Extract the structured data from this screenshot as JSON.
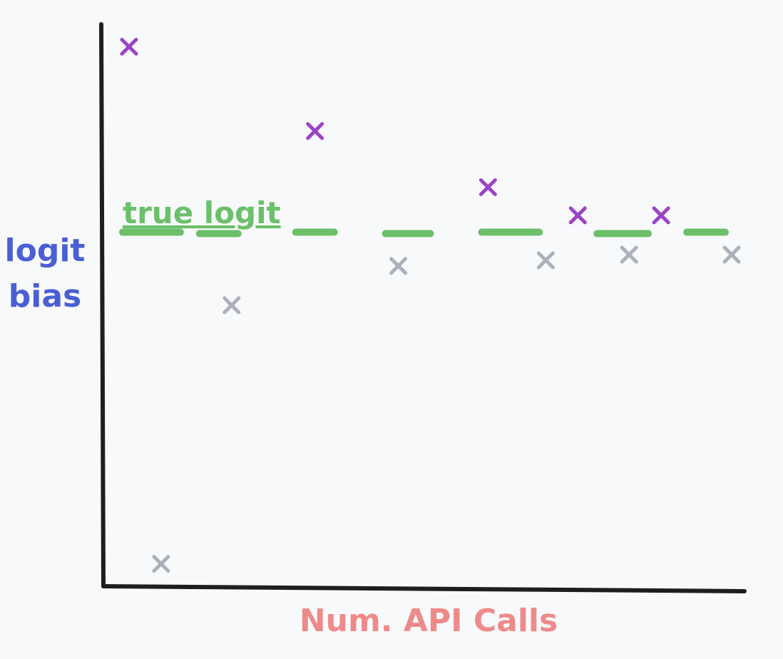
{
  "chart_data": {
    "type": "scatter",
    "xlabel": "Num. API Calls",
    "ylabel": [
      "logit",
      "bias"
    ],
    "annotation": "true logit",
    "axis_tick_labels": "none",
    "grid": false,
    "colors": {
      "xlabel": "#ee8a8a",
      "ylabel": "#4a5fd4",
      "true_logit": "#6cc06a",
      "purple_series": "#9b43c4",
      "gray_series": "#aab1ba",
      "axis": "#1e1e1e"
    },
    "xlim": [
      0,
      100
    ],
    "ylim": [
      0,
      100
    ],
    "true_logit_value": 63,
    "true_logit_segments": [
      {
        "x0": 3,
        "x1": 12
      },
      {
        "x0": 15,
        "x1": 21
      },
      {
        "x0": 30,
        "x1": 36
      },
      {
        "x0": 44,
        "x1": 51
      },
      {
        "x0": 59,
        "x1": 68
      },
      {
        "x0": 77,
        "x1": 85
      },
      {
        "x0": 91,
        "x1": 97
      }
    ],
    "series": [
      {
        "points": [
          {
            "x": 4,
            "y": 96
          },
          {
            "x": 33,
            "y": 81
          },
          {
            "x": 60,
            "y": 71
          },
          {
            "x": 74,
            "y": 66
          },
          {
            "x": 87,
            "y": 66
          }
        ]
      },
      {
        "points": [
          {
            "x": 9,
            "y": 4
          },
          {
            "x": 20,
            "y": 50
          },
          {
            "x": 46,
            "y": 57
          },
          {
            "x": 69,
            "y": 58
          },
          {
            "x": 82,
            "y": 59
          },
          {
            "x": 98,
            "y": 59
          }
        ]
      }
    ]
  }
}
